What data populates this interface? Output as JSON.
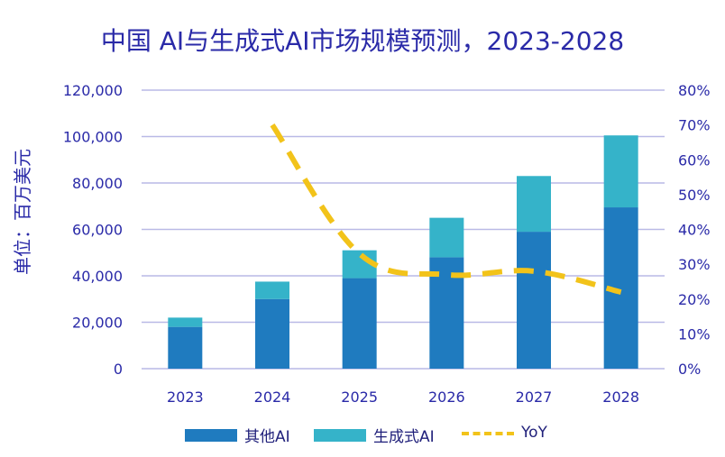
{
  "chart_data": {
    "type": "bar",
    "title": "中国 AI与生成式AI市场规模预测，2023-2028",
    "ylabel": "单位：百万美元",
    "categories": [
      "2023",
      "2024",
      "2025",
      "2026",
      "2027",
      "2028"
    ],
    "ylim": [
      0,
      120000
    ],
    "y_ticks": [
      "0",
      "20,000",
      "40,000",
      "60,000",
      "80,000",
      "100,000",
      "120,000"
    ],
    "y2lim": [
      0,
      80
    ],
    "y2_ticks": [
      "0%",
      "10%",
      "20%",
      "30%",
      "40%",
      "50%",
      "60%",
      "70%",
      "80%"
    ],
    "grid": true,
    "legend_position": "bottom",
    "series": [
      {
        "name": "其他AI",
        "type": "bar",
        "stacked": true,
        "color": "#1f7bbf",
        "values": [
          18000,
          30000,
          39000,
          48000,
          59000,
          69500
        ]
      },
      {
        "name": "生成式AI",
        "type": "bar",
        "stacked": true,
        "color": "#35b3c9",
        "values": [
          4000,
          7500,
          12000,
          17000,
          24000,
          31000
        ]
      },
      {
        "name": "YoY",
        "type": "line",
        "style": "dashed",
        "axis": "right",
        "color": "#f2c31a",
        "values": [
          null,
          70,
          33,
          27,
          28,
          22
        ]
      }
    ]
  }
}
